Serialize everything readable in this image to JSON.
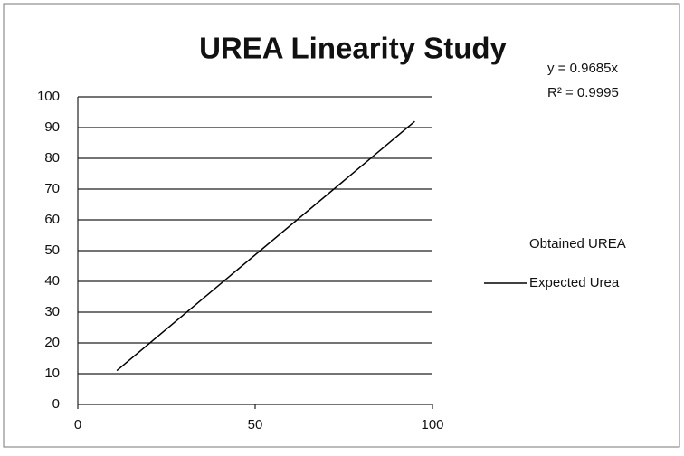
{
  "chart_data": {
    "type": "line",
    "title": "UREA Linearity Study",
    "annotations": [
      "y = 0.9685x",
      "R² = 0.9995"
    ],
    "x": [
      11,
      95
    ],
    "series": [
      {
        "name": "Obtained UREA",
        "color": "#000000",
        "values": [
          null,
          null
        ]
      },
      {
        "name": "Expected Urea",
        "color": "#000000",
        "values": [
          11,
          92
        ]
      }
    ],
    "xlim": [
      0,
      100
    ],
    "xticks": [
      0,
      50,
      100
    ],
    "ylim": [
      0,
      100
    ],
    "yticks": [
      0,
      10,
      20,
      30,
      40,
      50,
      60,
      70,
      80,
      90,
      100
    ],
    "grid": true,
    "legend": "right"
  }
}
